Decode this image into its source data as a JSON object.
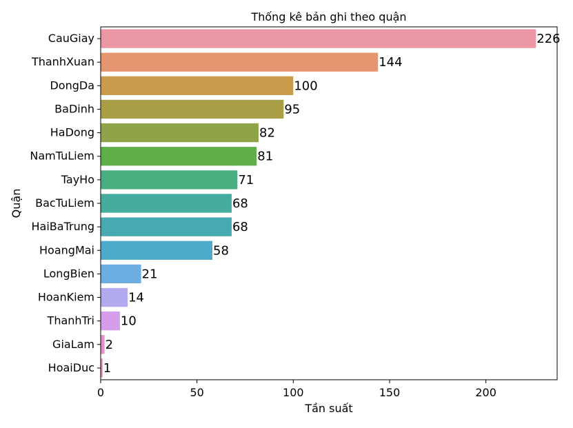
{
  "chart_data": {
    "type": "bar",
    "orientation": "horizontal",
    "title": "Thống kê bản ghi theo quận",
    "xlabel": "Tần suất",
    "ylabel": "Quận",
    "categories": [
      "CauGiay",
      "ThanhXuan",
      "DongDa",
      "BaDinh",
      "HaDong",
      "NamTuLiem",
      "TayHo",
      "BacTuLiem",
      "HaiBaTrung",
      "HoangMai",
      "LongBien",
      "HoanKiem",
      "ThanhTri",
      "GiaLam",
      "HoaiDuc"
    ],
    "values": [
      226,
      144,
      100,
      95,
      82,
      81,
      71,
      68,
      68,
      58,
      21,
      14,
      10,
      2,
      1
    ],
    "colors": [
      "#ea96a3",
      "#e5956f",
      "#c89c4a",
      "#a89e45",
      "#8fa449",
      "#5fae47",
      "#4aaf80",
      "#46ac9e",
      "#49a9b2",
      "#4eabc9",
      "#6baee2",
      "#b1aaee",
      "#d69ded",
      "#e68fcb",
      "#e88eb2"
    ],
    "xlim": [
      0,
      237
    ],
    "xticks": [
      0,
      50,
      100,
      150,
      200
    ],
    "grid": false,
    "legend": "none"
  }
}
